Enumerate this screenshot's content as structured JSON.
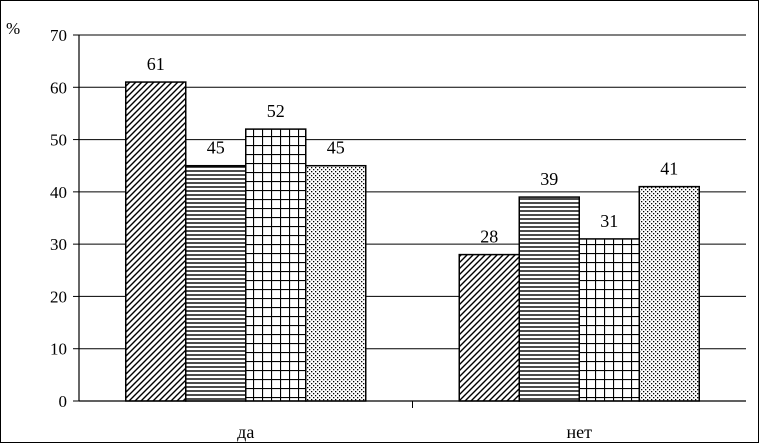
{
  "chart_data": {
    "type": "bar",
    "title": "",
    "xlabel": "",
    "ylabel": "%",
    "categories": [
      "да",
      "нет"
    ],
    "series": [
      {
        "values": [
          61,
          28
        ],
        "pattern": "diagonal-hatch"
      },
      {
        "values": [
          45,
          39
        ],
        "pattern": "horizontal-lines"
      },
      {
        "values": [
          52,
          31
        ],
        "pattern": "grid"
      },
      {
        "values": [
          45,
          41
        ],
        "pattern": "dots"
      }
    ],
    "ylim": [
      0,
      70
    ],
    "yticks": [
      0,
      10,
      20,
      30,
      40,
      50,
      60,
      70
    ],
    "grid": true,
    "legend": "none",
    "colors": {
      "bar_stroke": "#000000",
      "background": "#ffffff"
    }
  }
}
